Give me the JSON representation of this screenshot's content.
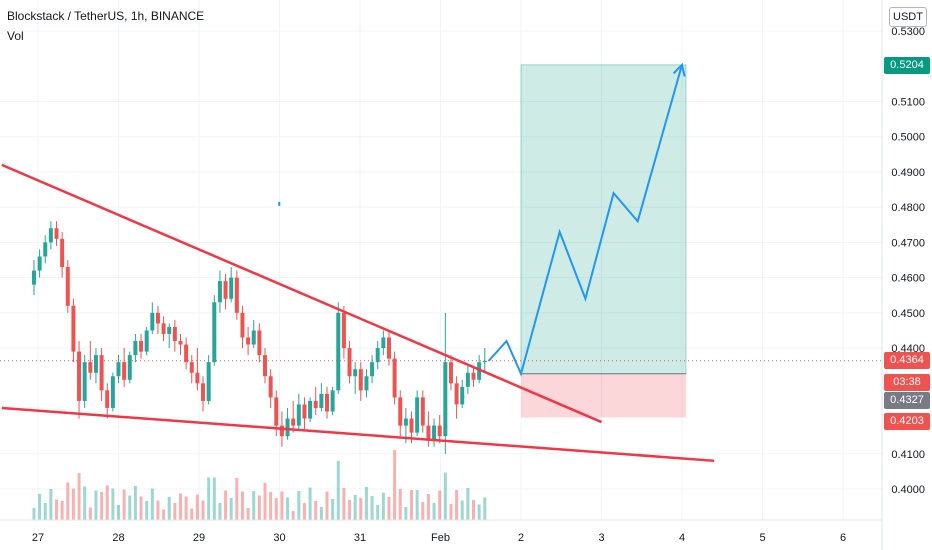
{
  "header": {
    "symbol": "Blockstack / TetherUS, 1h, BINANCE",
    "volume_label": "Vol"
  },
  "price_axis": {
    "unit_button": "USDT"
  },
  "price_labels": {
    "target": {
      "value": "0.5204",
      "color": "#089981"
    },
    "current": {
      "value": "0.4364",
      "color": "#ef5350"
    },
    "countdown": {
      "value": "03:38",
      "color": "#ef5350"
    },
    "entry": {
      "value": "0.4327",
      "color": "#787b86"
    },
    "stop": {
      "value": "0.4203",
      "color": "#ef5350"
    }
  },
  "chart_data": {
    "type": "candlestick",
    "x_ticks": [
      "27",
      "28",
      "29",
      "30",
      "31",
      "Feb",
      "2",
      "3",
      "4",
      "5",
      "6"
    ],
    "y_ticks": [
      "0.5300",
      "0.5100",
      "0.5000",
      "0.4900",
      "0.4800",
      "0.4700",
      "0.4600",
      "0.4500",
      "0.4400",
      "0.4100",
      "0.4000"
    ],
    "ylim": [
      0.392,
      0.536
    ],
    "candles": [
      [
        26.95,
        0.458,
        0.465,
        0.455,
        0.462
      ],
      [
        27.02,
        0.462,
        0.468,
        0.46,
        0.466
      ],
      [
        27.09,
        0.466,
        0.472,
        0.464,
        0.47
      ],
      [
        27.16,
        0.47,
        0.476,
        0.468,
        0.474
      ],
      [
        27.23,
        0.474,
        0.476,
        0.469,
        0.471
      ],
      [
        27.3,
        0.471,
        0.473,
        0.46,
        0.463
      ],
      [
        27.37,
        0.463,
        0.465,
        0.45,
        0.452
      ],
      [
        27.44,
        0.452,
        0.454,
        0.436,
        0.439
      ],
      [
        27.51,
        0.439,
        0.442,
        0.42,
        0.425
      ],
      [
        27.58,
        0.425,
        0.438,
        0.423,
        0.436
      ],
      [
        27.65,
        0.436,
        0.442,
        0.431,
        0.433
      ],
      [
        27.72,
        0.433,
        0.44,
        0.43,
        0.438
      ],
      [
        27.79,
        0.438,
        0.44,
        0.425,
        0.428
      ],
      [
        27.86,
        0.428,
        0.43,
        0.42,
        0.423
      ],
      [
        27.93,
        0.423,
        0.433,
        0.422,
        0.432
      ],
      [
        28.0,
        0.432,
        0.438,
        0.43,
        0.436
      ],
      [
        28.07,
        0.436,
        0.44,
        0.429,
        0.431
      ],
      [
        28.14,
        0.431,
        0.439,
        0.43,
        0.438
      ],
      [
        28.21,
        0.438,
        0.444,
        0.436,
        0.442
      ],
      [
        28.28,
        0.442,
        0.444,
        0.437,
        0.439
      ],
      [
        28.35,
        0.439,
        0.446,
        0.438,
        0.445
      ],
      [
        28.42,
        0.445,
        0.453,
        0.444,
        0.45
      ],
      [
        28.49,
        0.45,
        0.452,
        0.444,
        0.447
      ],
      [
        28.56,
        0.447,
        0.449,
        0.442,
        0.444
      ],
      [
        28.63,
        0.444,
        0.447,
        0.44,
        0.446
      ],
      [
        28.7,
        0.446,
        0.448,
        0.439,
        0.442
      ],
      [
        28.77,
        0.442,
        0.444,
        0.438,
        0.441
      ],
      [
        28.84,
        0.441,
        0.443,
        0.434,
        0.436
      ],
      [
        28.91,
        0.436,
        0.438,
        0.43,
        0.433
      ],
      [
        28.98,
        0.433,
        0.44,
        0.428,
        0.43
      ],
      [
        29.05,
        0.43,
        0.432,
        0.422,
        0.425
      ],
      [
        29.12,
        0.425,
        0.438,
        0.424,
        0.436
      ],
      [
        29.19,
        0.436,
        0.455,
        0.435,
        0.453
      ],
      [
        29.26,
        0.453,
        0.462,
        0.45,
        0.459
      ],
      [
        29.33,
        0.459,
        0.461,
        0.451,
        0.454
      ],
      [
        29.4,
        0.454,
        0.463,
        0.453,
        0.46
      ],
      [
        29.47,
        0.46,
        0.462,
        0.448,
        0.45
      ],
      [
        29.54,
        0.45,
        0.452,
        0.44,
        0.443
      ],
      [
        29.61,
        0.443,
        0.446,
        0.438,
        0.441
      ],
      [
        29.68,
        0.441,
        0.448,
        0.44,
        0.445
      ],
      [
        29.75,
        0.445,
        0.447,
        0.436,
        0.438
      ],
      [
        29.82,
        0.438,
        0.44,
        0.43,
        0.432
      ],
      [
        29.89,
        0.432,
        0.434,
        0.423,
        0.426
      ],
      [
        29.96,
        0.426,
        0.428,
        0.415,
        0.418
      ],
      [
        30.03,
        0.418,
        0.422,
        0.412,
        0.415
      ],
      [
        30.1,
        0.415,
        0.423,
        0.414,
        0.42
      ],
      [
        30.17,
        0.42,
        0.425,
        0.416,
        0.418
      ],
      [
        30.24,
        0.418,
        0.427,
        0.417,
        0.424
      ],
      [
        30.31,
        0.424,
        0.426,
        0.417,
        0.42
      ],
      [
        30.38,
        0.42,
        0.426,
        0.419,
        0.425
      ],
      [
        30.45,
        0.425,
        0.429,
        0.421,
        0.423
      ],
      [
        30.52,
        0.423,
        0.43,
        0.422,
        0.427
      ],
      [
        30.59,
        0.427,
        0.429,
        0.42,
        0.422
      ],
      [
        30.66,
        0.422,
        0.429,
        0.421,
        0.428
      ],
      [
        30.73,
        0.428,
        0.453,
        0.427,
        0.45
      ],
      [
        30.8,
        0.45,
        0.452,
        0.437,
        0.44
      ],
      [
        30.87,
        0.44,
        0.442,
        0.43,
        0.432
      ],
      [
        30.94,
        0.432,
        0.436,
        0.427,
        0.434
      ],
      [
        31.01,
        0.434,
        0.436,
        0.425,
        0.428
      ],
      [
        31.08,
        0.428,
        0.434,
        0.426,
        0.432
      ],
      [
        31.15,
        0.432,
        0.438,
        0.43,
        0.436
      ],
      [
        31.22,
        0.436,
        0.442,
        0.434,
        0.44
      ],
      [
        31.29,
        0.44,
        0.445,
        0.438,
        0.443
      ],
      [
        31.36,
        0.443,
        0.445,
        0.435,
        0.437
      ],
      [
        31.43,
        0.437,
        0.439,
        0.424,
        0.426
      ],
      [
        31.5,
        0.426,
        0.428,
        0.415,
        0.418
      ],
      [
        31.57,
        0.418,
        0.423,
        0.413,
        0.42
      ],
      [
        31.64,
        0.42,
        0.422,
        0.413,
        0.416
      ],
      [
        31.71,
        0.416,
        0.428,
        0.415,
        0.426
      ],
      [
        31.78,
        0.426,
        0.428,
        0.416,
        0.418
      ],
      [
        31.85,
        0.418,
        0.422,
        0.412,
        0.414
      ],
      [
        31.92,
        0.414,
        0.42,
        0.412,
        0.418
      ],
      [
        31.99,
        0.418,
        0.421,
        0.413,
        0.415
      ],
      [
        32.06,
        0.415,
        0.45,
        0.41,
        0.436
      ],
      [
        32.13,
        0.436,
        0.438,
        0.428,
        0.43
      ],
      [
        32.2,
        0.43,
        0.432,
        0.42,
        0.424
      ],
      [
        32.27,
        0.424,
        0.431,
        0.423,
        0.429
      ],
      [
        32.34,
        0.429,
        0.435,
        0.427,
        0.433
      ],
      [
        32.41,
        0.433,
        0.435,
        0.429,
        0.431
      ],
      [
        32.48,
        0.431,
        0.438,
        0.43,
        0.436
      ],
      [
        32.55,
        0.436,
        0.44,
        0.433,
        0.4364
      ]
    ],
    "trendlines": [
      {
        "from": [
          26.55,
          0.492
        ],
        "to": [
          34.0,
          0.419
        ],
        "color": "#f23645"
      },
      {
        "from": [
          26.55,
          0.423
        ],
        "to": [
          35.4,
          0.408
        ],
        "color": "#f23645"
      }
    ],
    "projection_path": [
      [
        32.6,
        0.4364
      ],
      [
        32.82,
        0.442
      ],
      [
        33.0,
        0.4327
      ],
      [
        33.48,
        0.473
      ],
      [
        33.8,
        0.454
      ],
      [
        34.15,
        0.484
      ],
      [
        34.45,
        0.476
      ],
      [
        35.0,
        0.5204
      ]
    ],
    "position": {
      "x_from": 33.0,
      "x_to": 35.05,
      "entry": 0.4327,
      "target": 0.5204,
      "stop": 0.4203
    },
    "current_price": 0.4364,
    "volume": {
      "max_height_ratio": 1.0
    }
  }
}
